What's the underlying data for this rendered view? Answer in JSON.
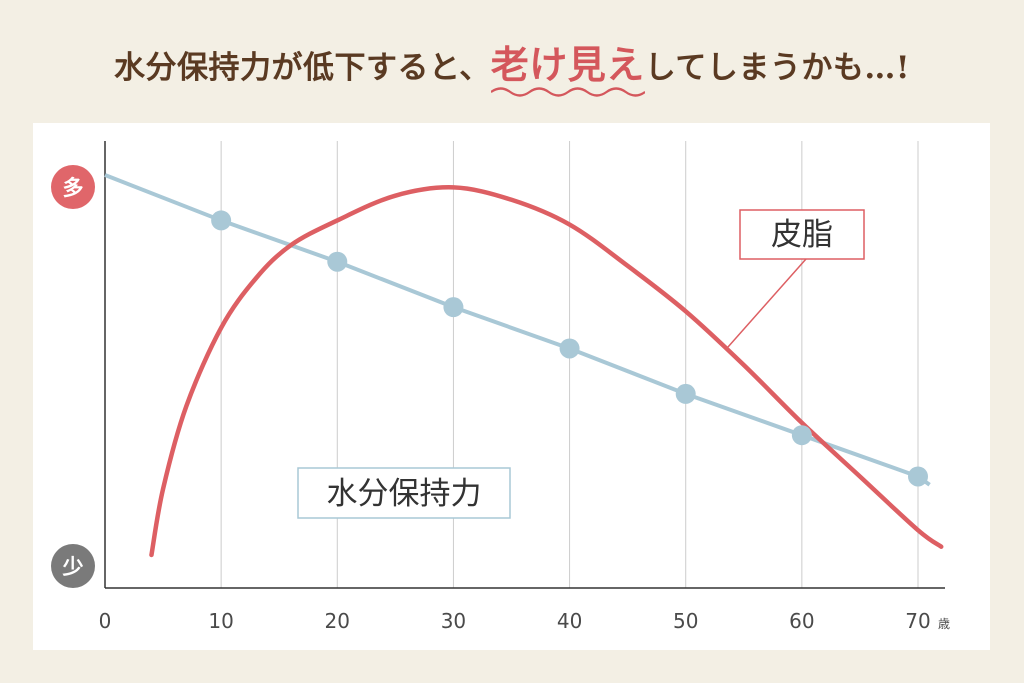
{
  "headline": {
    "prefix": "水分保持力が低下すると、",
    "highlight": "老け見え",
    "suffix": "してしまうかも…!"
  },
  "colors": {
    "background": "#f3efe4",
    "headline_text": "#5a3a22",
    "highlight": "#d4575c",
    "sebum_line": "#dd5f63",
    "water_line": "#a9c8d6",
    "water_point": "#a9c8d6",
    "grid": "#cccccc",
    "axis": "#333333",
    "badge_high": "#e0666a",
    "badge_low": "#7a7a7a"
  },
  "chart_data": {
    "type": "line",
    "x_ticks": [
      0,
      10,
      20,
      30,
      40,
      50,
      60,
      70
    ],
    "x_unit": "歳",
    "y_axis_labels": {
      "high": "多",
      "low": "少"
    },
    "xlim": [
      0,
      72
    ],
    "ylim": [
      0,
      100
    ],
    "grid": "vertical",
    "series": [
      {
        "name": "皮脂",
        "style": "curve",
        "points": [
          [
            4,
            8
          ],
          [
            5,
            24
          ],
          [
            7,
            44
          ],
          [
            10,
            63
          ],
          [
            13,
            75
          ],
          [
            16,
            83
          ],
          [
            20,
            89
          ],
          [
            25,
            95
          ],
          [
            30,
            97
          ],
          [
            35,
            94
          ],
          [
            40,
            88
          ],
          [
            45,
            78
          ],
          [
            50,
            67
          ],
          [
            55,
            54
          ],
          [
            60,
            40
          ],
          [
            65,
            27
          ],
          [
            70,
            14
          ],
          [
            72,
            10
          ]
        ]
      },
      {
        "name": "水分保持力",
        "style": "line-with-markers",
        "points": [
          [
            0,
            100
          ],
          [
            10,
            89
          ],
          [
            20,
            79
          ],
          [
            30,
            68
          ],
          [
            40,
            58
          ],
          [
            50,
            47
          ],
          [
            60,
            37
          ],
          [
            70,
            27
          ],
          [
            71,
            25
          ]
        ],
        "markers": [
          [
            10,
            89
          ],
          [
            20,
            79
          ],
          [
            30,
            68
          ],
          [
            40,
            58
          ],
          [
            50,
            47
          ],
          [
            60,
            37
          ],
          [
            70,
            27
          ]
        ]
      }
    ]
  }
}
